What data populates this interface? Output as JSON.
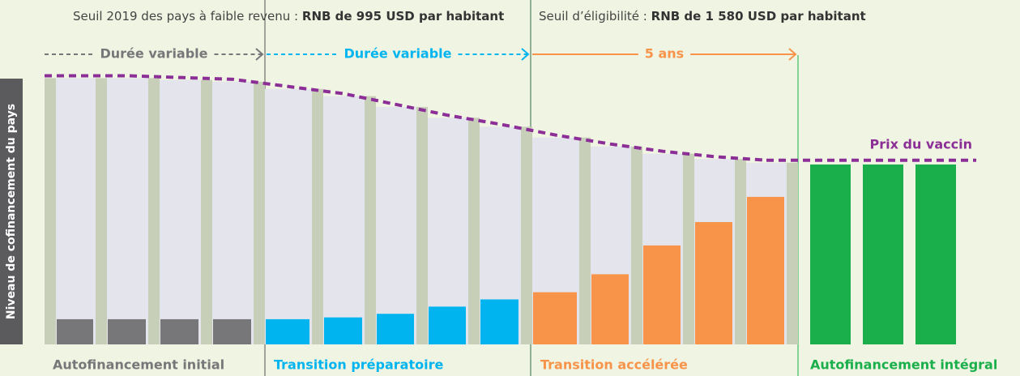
{
  "thresholds": [
    {
      "text": "Seuil 2019 des pays à faible revenu :",
      "bold": "RNB de 995 USD par habitant"
    },
    {
      "text": "Seuil d’éligibilité :",
      "bold": "RNB de 1 580 USD par habitant"
    }
  ],
  "y_axis_label": "Niveau de cofinancement du pays",
  "price_label": "Prix du vaccin",
  "vaccine_price": [
    148,
    148,
    147,
    146,
    142,
    138,
    132,
    126,
    121,
    115,
    110,
    106,
    103,
    101
  ],
  "phases": [
    {
      "name": "Autofinancement initial",
      "duration": "Durée variable",
      "color": "#77777a",
      "cofinancing": [
        14,
        14,
        14,
        14
      ]
    },
    {
      "name": "Transition préparatoire",
      "duration": "Durée variable",
      "color": "#00b5ef",
      "cofinancing": [
        14,
        15,
        17,
        21,
        25
      ]
    },
    {
      "name": "Transition accélérée",
      "duration": "5 ans",
      "color": "#f7944a",
      "cofinancing": [
        29,
        39,
        55,
        68,
        82
      ]
    },
    {
      "name": "Autofinancement intégral",
      "color": "#1aaf4b",
      "cofinancing": [
        100,
        100,
        100
      ]
    }
  ]
}
